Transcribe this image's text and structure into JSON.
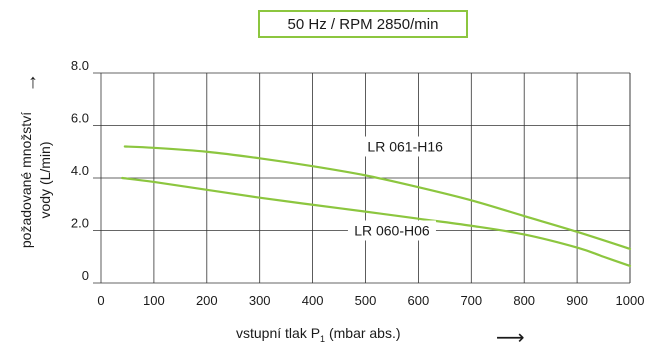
{
  "badge": {
    "text": "50 Hz / RPM 2850/min",
    "border_color": "#8cc63f"
  },
  "arrows": {
    "up": "↑",
    "right": "⟶"
  },
  "chart_data": {
    "type": "line",
    "title": "50 Hz / RPM 2850/min",
    "ylabel_lines": [
      "požadované množství",
      "vody (L/min)"
    ],
    "xlabel": {
      "main": "vstupní tlak P",
      "sub": "1",
      "rest": " (mbar abs.)"
    },
    "xlim": [
      0,
      1000
    ],
    "ylim": [
      0,
      8
    ],
    "x_ticks": [
      0,
      100,
      200,
      300,
      400,
      500,
      600,
      700,
      800,
      900,
      1000
    ],
    "x_tick_labels": [
      "0",
      "100",
      "200",
      "300",
      "400",
      "500",
      "600",
      "700",
      "800",
      "900",
      "1000"
    ],
    "y_ticks": [
      0,
      2,
      4,
      6,
      8
    ],
    "y_tick_labels": [
      "0",
      "2.0",
      "4.0",
      "6.0",
      "8.0"
    ],
    "grid": true,
    "line_color": "#8cc63f",
    "series": [
      {
        "name": "LR 061-H16",
        "x": [
          45,
          100,
          200,
          300,
          400,
          500,
          600,
          700,
          800,
          900,
          1000
        ],
        "y": [
          5.2,
          5.15,
          5.0,
          4.75,
          4.45,
          4.1,
          3.65,
          3.15,
          2.55,
          1.95,
          1.3
        ]
      },
      {
        "name": "LR 060-H06",
        "x": [
          40,
          100,
          200,
          300,
          400,
          500,
          600,
          700,
          800,
          900,
          950,
          1000
        ],
        "y": [
          4.0,
          3.85,
          3.55,
          3.25,
          2.98,
          2.72,
          2.45,
          2.18,
          1.85,
          1.35,
          1.0,
          0.65
        ]
      }
    ],
    "series_labels": [
      {
        "text": "LR 061-H16",
        "x": 575,
        "y": 5.2
      },
      {
        "text": "LR 060-H06",
        "x": 550,
        "y": 2.0
      }
    ]
  }
}
